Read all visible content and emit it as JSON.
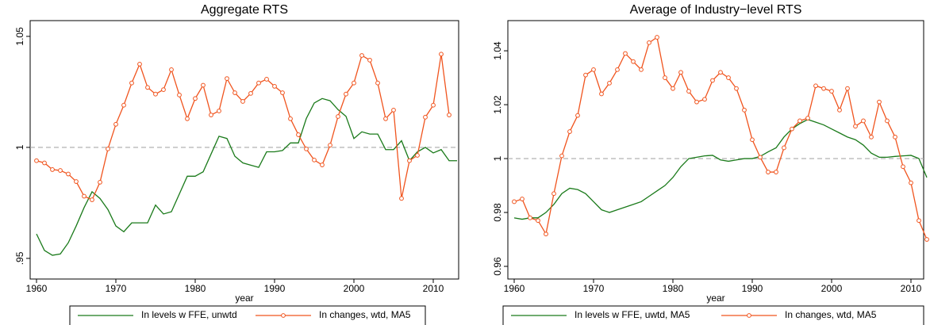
{
  "chart_data": [
    {
      "type": "line",
      "title": "Aggregate RTS",
      "xlabel": "year",
      "x": [
        1960,
        1961,
        1962,
        1963,
        1964,
        1965,
        1966,
        1967,
        1968,
        1969,
        1970,
        1971,
        1972,
        1973,
        1974,
        1975,
        1976,
        1977,
        1978,
        1979,
        1980,
        1981,
        1982,
        1983,
        1984,
        1985,
        1986,
        1987,
        1988,
        1989,
        1990,
        1991,
        1992,
        1993,
        1994,
        1995,
        1996,
        1997,
        1998,
        1999,
        2000,
        2001,
        2002,
        2003,
        2004,
        2005,
        2006,
        2007,
        2008,
        2009,
        2010,
        2011,
        2012,
        2013
      ],
      "xlim": [
        1959.2,
        2013.2
      ],
      "xticks": [
        1960,
        1970,
        1980,
        1990,
        2000,
        2010
      ],
      "ylim": [
        0.9407,
        1.0571
      ],
      "yticks": [
        {
          "value": 0.95,
          "label": ".95"
        },
        1,
        1.05
      ],
      "hline": 1,
      "series": [
        {
          "name": "In levels w FFE, unwtd",
          "color": "#1a7a1a",
          "marker": false,
          "values": [
            0.961,
            0.9536,
            0.9514,
            0.952,
            0.957,
            0.9646,
            0.9729,
            0.98,
            0.977,
            0.972,
            0.9646,
            0.962,
            0.966,
            0.966,
            0.966,
            0.974,
            0.97,
            0.971,
            0.979,
            0.987,
            0.987,
            0.989,
            0.997,
            1.005,
            1.004,
            0.996,
            0.993,
            0.992,
            0.991,
            0.998,
            0.998,
            0.9986,
            1.002,
            1.002,
            1.013,
            1.02,
            1.022,
            1.021,
            1.017,
            1.014,
            1.004,
            1.007,
            1.006,
            1.006,
            0.999,
            0.999,
            1.003,
            0.994,
            0.998,
            1.0,
            0.9975,
            0.999,
            0.994,
            0.994
          ]
        },
        {
          "name": "In changes, wtd, MA5",
          "color": "#f0541e",
          "marker": true,
          "values": [
            0.994,
            0.993,
            0.99,
            0.9896,
            0.988,
            0.9846,
            0.978,
            0.9764,
            0.9843,
            0.9993,
            1.0104,
            1.019,
            1.029,
            1.0375,
            1.027,
            1.024,
            1.026,
            1.035,
            1.0236,
            1.0129,
            1.022,
            1.028,
            1.0146,
            1.0164,
            1.031,
            1.0246,
            1.0207,
            1.0243,
            1.029,
            1.0307,
            1.0275,
            1.0246,
            1.0129,
            1.0057,
            0.9993,
            0.9943,
            0.9921,
            1.001,
            1.0139,
            1.024,
            1.029,
            1.0414,
            1.0393,
            1.029,
            1.0129,
            1.0168,
            0.977,
            0.994,
            0.9964,
            1.0136,
            1.019,
            1.042,
            1.0146,
            null
          ]
        }
      ]
    },
    {
      "type": "line",
      "title": "Average of Industry−level RTS",
      "xlabel": "year",
      "x": [
        1960,
        1961,
        1962,
        1963,
        1964,
        1965,
        1966,
        1967,
        1968,
        1969,
        1970,
        1971,
        1972,
        1973,
        1974,
        1975,
        1976,
        1977,
        1978,
        1979,
        1980,
        1981,
        1982,
        1983,
        1984,
        1985,
        1986,
        1987,
        1988,
        1989,
        1990,
        1991,
        1992,
        1993,
        1994,
        1995,
        1996,
        1997,
        1998,
        1999,
        2000,
        2001,
        2002,
        2003,
        2004,
        2005,
        2006,
        2007,
        2008,
        2009,
        2010,
        2011,
        2012
      ],
      "xlim": [
        1959.2,
        2011.6
      ],
      "xticks": [
        1960,
        1970,
        1980,
        1990,
        2000,
        2010
      ],
      "ylim": [
        0.9553,
        1.0512
      ],
      "yticks": [
        0.96,
        0.98,
        1,
        1.02,
        1.04
      ],
      "hline": 1,
      "series": [
        {
          "name": "In levels w FFE, uwtd, MA5",
          "color": "#1a7a1a",
          "marker": false,
          "values": [
            0.978,
            0.9775,
            0.978,
            0.978,
            0.98,
            0.983,
            0.987,
            0.989,
            0.9885,
            0.987,
            0.984,
            0.981,
            0.98,
            0.981,
            0.982,
            0.983,
            0.984,
            0.986,
            0.988,
            0.99,
            0.993,
            0.997,
            1.0,
            1.0005,
            1.001,
            1.0012,
            0.9995,
            0.999,
            0.9995,
            1.0,
            1.0,
            1.0008,
            1.0025,
            1.004,
            1.008,
            1.011,
            1.013,
            1.0145,
            1.0135,
            1.0125,
            1.011,
            1.0095,
            1.008,
            1.007,
            1.005,
            1.002,
            1.0005,
            1.0005,
            1.0008,
            1.001,
            1.0012,
            1.0,
            0.993
          ]
        },
        {
          "name": "In changes, wtd, MA5",
          "color": "#f0541e",
          "marker": true,
          "values": [
            0.984,
            0.985,
            0.978,
            0.977,
            0.972,
            0.987,
            1.001,
            1.01,
            1.016,
            1.031,
            1.033,
            1.024,
            1.028,
            1.033,
            1.039,
            1.036,
            1.033,
            1.043,
            1.045,
            1.03,
            1.026,
            1.032,
            1.025,
            1.021,
            1.022,
            1.029,
            1.032,
            1.03,
            1.026,
            1.018,
            1.007,
            1.0005,
            0.995,
            0.995,
            1.004,
            1.011,
            1.014,
            1.015,
            1.027,
            1.026,
            1.025,
            1.018,
            1.026,
            1.012,
            1.014,
            1.008,
            1.021,
            1.014,
            1.008,
            0.997,
            0.991,
            0.977,
            0.97
          ]
        }
      ]
    }
  ]
}
